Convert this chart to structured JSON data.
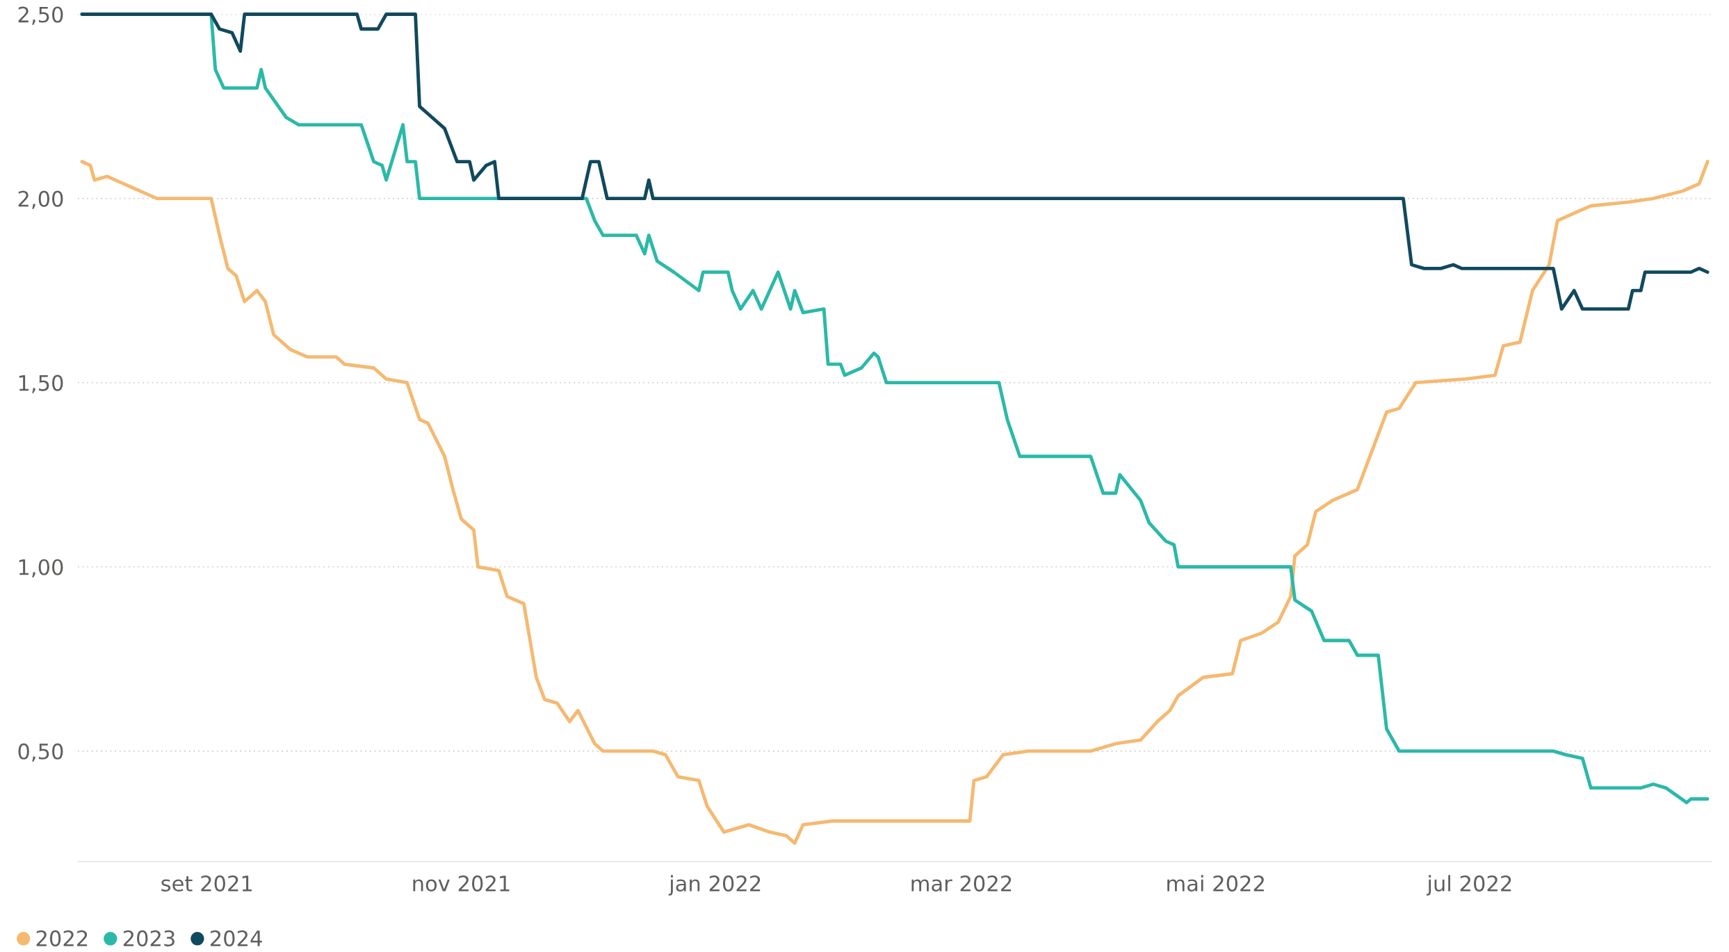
{
  "chart_data": {
    "type": "line",
    "xlim": [
      "2021-08-01",
      "2022-08-28"
    ],
    "ylim": [
      0.2,
      2.5
    ],
    "xticks": [
      {
        "value": "2021-09-01",
        "label": "set 2021"
      },
      {
        "value": "2021-11-01",
        "label": "nov 2021"
      },
      {
        "value": "2022-01-01",
        "label": "jan 2022"
      },
      {
        "value": "2022-03-01",
        "label": "mar 2022"
      },
      {
        "value": "2022-05-01",
        "label": "mai 2022"
      },
      {
        "value": "2022-07-01",
        "label": "jul 2022"
      }
    ],
    "yticks": [
      {
        "value": 0.5,
        "label": "0,50"
      },
      {
        "value": 1.0,
        "label": "1,00"
      },
      {
        "value": 1.5,
        "label": "1,50"
      },
      {
        "value": 2.0,
        "label": "2,00"
      },
      {
        "value": 2.5,
        "label": "2,50"
      }
    ],
    "grid": "y",
    "legend": "bottom left",
    "series": [
      {
        "name": "2022",
        "color": "#f5b971",
        "x": [
          "2021-08-02",
          "2021-08-04",
          "2021-08-05",
          "2021-08-08",
          "2021-08-10",
          "2021-08-14",
          "2021-08-20",
          "2021-09-02",
          "2021-09-04",
          "2021-09-06",
          "2021-09-08",
          "2021-09-10",
          "2021-09-13",
          "2021-09-15",
          "2021-09-17",
          "2021-09-21",
          "2021-09-25",
          "2021-10-02",
          "2021-10-04",
          "2021-10-11",
          "2021-10-14",
          "2021-10-19",
          "2021-10-22",
          "2021-10-24",
          "2021-10-28",
          "2021-10-30",
          "2021-11-01",
          "2021-11-04",
          "2021-11-05",
          "2021-11-10",
          "2021-11-12",
          "2021-11-16",
          "2021-11-19",
          "2021-11-21",
          "2021-11-24",
          "2021-11-27",
          "2021-11-29",
          "2021-12-03",
          "2021-12-05",
          "2021-12-17",
          "2021-12-20",
          "2021-12-23",
          "2021-12-28",
          "2021-12-30",
          "2022-01-03",
          "2022-01-09",
          "2022-01-14",
          "2022-01-18",
          "2022-01-20",
          "2022-01-22",
          "2022-01-29",
          "2022-03-03",
          "2022-03-04",
          "2022-03-07",
          "2022-03-11",
          "2022-03-17",
          "2022-04-01",
          "2022-04-07",
          "2022-04-13",
          "2022-04-17",
          "2022-04-20",
          "2022-04-22",
          "2022-04-28",
          "2022-05-05",
          "2022-05-07",
          "2022-05-12",
          "2022-05-16",
          "2022-05-19",
          "2022-05-20",
          "2022-05-23",
          "2022-05-25",
          "2022-05-29",
          "2022-06-04",
          "2022-06-08",
          "2022-06-11",
          "2022-06-14",
          "2022-06-18",
          "2022-06-30",
          "2022-07-07",
          "2022-07-09",
          "2022-07-13",
          "2022-07-16",
          "2022-07-20",
          "2022-07-22",
          "2022-07-26",
          "2022-07-30",
          "2022-08-08",
          "2022-08-14",
          "2022-08-21",
          "2022-08-25",
          "2022-08-27"
        ],
        "values": [
          2.1,
          2.09,
          2.05,
          2.06,
          2.05,
          2.03,
          2.0,
          2.0,
          1.9,
          1.81,
          1.79,
          1.72,
          1.75,
          1.72,
          1.63,
          1.59,
          1.57,
          1.57,
          1.55,
          1.54,
          1.51,
          1.5,
          1.4,
          1.39,
          1.3,
          1.21,
          1.13,
          1.1,
          1.0,
          0.99,
          0.92,
          0.9,
          0.7,
          0.64,
          0.63,
          0.58,
          0.61,
          0.52,
          0.5,
          0.5,
          0.49,
          0.43,
          0.42,
          0.35,
          0.28,
          0.3,
          0.28,
          0.27,
          0.25,
          0.3,
          0.31,
          0.31,
          0.42,
          0.43,
          0.49,
          0.5,
          0.5,
          0.52,
          0.53,
          0.58,
          0.61,
          0.65,
          0.7,
          0.71,
          0.8,
          0.82,
          0.85,
          0.92,
          1.03,
          1.06,
          1.15,
          1.18,
          1.21,
          1.33,
          1.42,
          1.43,
          1.5,
          1.51,
          1.52,
          1.6,
          1.61,
          1.75,
          1.82,
          1.94,
          1.96,
          1.98,
          1.99,
          2.0,
          2.02,
          2.04,
          2.1
        ]
      },
      {
        "name": "2023",
        "color": "#2bb9a8",
        "x": [
          "2021-08-02",
          "2021-09-02",
          "2021-09-03",
          "2021-09-05",
          "2021-09-13",
          "2021-09-14",
          "2021-09-15",
          "2021-09-20",
          "2021-09-23",
          "2021-10-08",
          "2021-10-11",
          "2021-10-13",
          "2021-10-14",
          "2021-10-18",
          "2021-10-19",
          "2021-10-21",
          "2021-10-22",
          "2021-12-01",
          "2021-12-03",
          "2021-12-05",
          "2021-12-13",
          "2021-12-15",
          "2021-12-16",
          "2021-12-18",
          "2021-12-22",
          "2021-12-28",
          "2021-12-29",
          "2022-01-04",
          "2022-01-05",
          "2022-01-07",
          "2022-01-10",
          "2022-01-12",
          "2022-01-16",
          "2022-01-19",
          "2022-01-20",
          "2022-01-22",
          "2022-01-27",
          "2022-01-28",
          "2022-01-31",
          "2022-02-01",
          "2022-02-05",
          "2022-02-08",
          "2022-02-09",
          "2022-02-11",
          "2022-03-10",
          "2022-03-12",
          "2022-03-15",
          "2022-03-22",
          "2022-04-01",
          "2022-04-04",
          "2022-04-07",
          "2022-04-08",
          "2022-04-13",
          "2022-04-15",
          "2022-04-19",
          "2022-04-21",
          "2022-04-22",
          "2022-05-19",
          "2022-05-20",
          "2022-05-24",
          "2022-05-27",
          "2022-06-02",
          "2022-06-04",
          "2022-06-09",
          "2022-06-11",
          "2022-06-14",
          "2022-07-21",
          "2022-07-24",
          "2022-07-28",
          "2022-07-30",
          "2022-08-11",
          "2022-08-14",
          "2022-08-17",
          "2022-08-22",
          "2022-08-23",
          "2022-08-27"
        ],
        "values": [
          2.5,
          2.5,
          2.35,
          2.3,
          2.3,
          2.35,
          2.3,
          2.22,
          2.2,
          2.2,
          2.1,
          2.09,
          2.05,
          2.2,
          2.1,
          2.1,
          2.0,
          2.0,
          1.94,
          1.9,
          1.9,
          1.85,
          1.9,
          1.83,
          1.8,
          1.75,
          1.8,
          1.8,
          1.75,
          1.7,
          1.75,
          1.7,
          1.8,
          1.7,
          1.75,
          1.69,
          1.7,
          1.55,
          1.55,
          1.52,
          1.54,
          1.58,
          1.57,
          1.5,
          1.5,
          1.4,
          1.3,
          1.3,
          1.3,
          1.2,
          1.2,
          1.25,
          1.18,
          1.12,
          1.07,
          1.06,
          1.0,
          1.0,
          0.91,
          0.88,
          0.8,
          0.8,
          0.76,
          0.76,
          0.56,
          0.5,
          0.5,
          0.49,
          0.48,
          0.4,
          0.4,
          0.41,
          0.4,
          0.36,
          0.37,
          0.37
        ]
      },
      {
        "name": "2024",
        "color": "#11495e",
        "x": [
          "2021-08-02",
          "2021-09-02",
          "2021-09-04",
          "2021-09-07",
          "2021-09-09",
          "2021-09-10",
          "2021-10-07",
          "2021-10-08",
          "2021-10-12",
          "2021-10-14",
          "2021-10-21",
          "2021-10-22",
          "2021-10-25",
          "2021-10-28",
          "2021-10-31",
          "2021-11-03",
          "2021-11-04",
          "2021-11-07",
          "2021-11-09",
          "2021-11-10",
          "2021-11-30",
          "2021-12-02",
          "2021-12-04",
          "2021-12-06",
          "2021-12-15",
          "2021-12-16",
          "2021-12-17",
          "2022-06-15",
          "2022-06-17",
          "2022-06-20",
          "2022-06-24",
          "2022-06-27",
          "2022-06-29",
          "2022-07-07",
          "2022-07-21",
          "2022-07-23",
          "2022-07-26",
          "2022-07-28",
          "2022-08-08",
          "2022-08-09",
          "2022-08-11",
          "2022-08-12",
          "2022-08-23",
          "2022-08-25",
          "2022-08-27"
        ],
        "values": [
          2.5,
          2.5,
          2.46,
          2.45,
          2.4,
          2.5,
          2.5,
          2.46,
          2.46,
          2.5,
          2.5,
          2.25,
          2.22,
          2.19,
          2.1,
          2.1,
          2.05,
          2.09,
          2.1,
          2.0,
          2.0,
          2.1,
          2.1,
          2.0,
          2.0,
          2.05,
          2.0,
          2.0,
          1.82,
          1.81,
          1.81,
          1.82,
          1.81,
          1.81,
          1.81,
          1.7,
          1.75,
          1.7,
          1.7,
          1.75,
          1.75,
          1.8,
          1.8,
          1.81,
          1.8
        ]
      }
    ]
  }
}
